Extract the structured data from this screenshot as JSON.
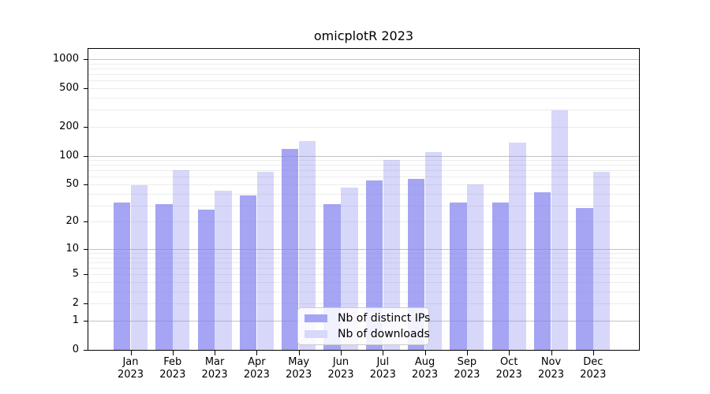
{
  "chart_data": {
    "type": "bar",
    "title": "omicplotR 2023",
    "x_months": [
      "Jan",
      "Feb",
      "Mar",
      "Apr",
      "May",
      "Jun",
      "Jul",
      "Aug",
      "Sep",
      "Oct",
      "Nov",
      "Dec"
    ],
    "x_year": "2023",
    "y_tick_labels": [
      "0",
      "1",
      "2",
      "5",
      "10",
      "20",
      "50",
      "100",
      "200",
      "500",
      "1000"
    ],
    "y_scale": "log10(1+x)",
    "ylim": [
      0,
      1270
    ],
    "grid": "horizontal-log-minor",
    "legend_position": "bottom-center",
    "series": [
      {
        "name": "Nb of distinct IPs",
        "color": "rgba(130,130,240,0.72)",
        "swatch_color": "#a5a5f5",
        "values": [
          32,
          31,
          27,
          38,
          117,
          31,
          55,
          57,
          32,
          32,
          41,
          28
        ]
      },
      {
        "name": "Nb of downloads",
        "color": "rgba(130,130,240,0.32)",
        "swatch_color": "#d8d8fa",
        "values": [
          49,
          70,
          43,
          68,
          142,
          46,
          90,
          108,
          50,
          137,
          298,
          68
        ]
      }
    ]
  }
}
